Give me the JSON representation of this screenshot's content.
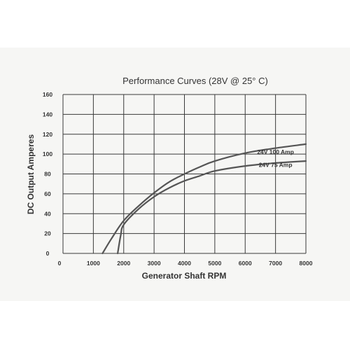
{
  "chart_data": {
    "type": "line",
    "title": "Performance Curves (28V @ 25° C)",
    "xlabel": "Generator Shaft RPM",
    "ylabel": "DC Output Amperes",
    "xlim": [
      0,
      8000
    ],
    "ylim": [
      0,
      160
    ],
    "xticks": [
      0,
      1000,
      2000,
      3000,
      4000,
      5000,
      6000,
      7000,
      8000
    ],
    "yticks": [
      0,
      20,
      40,
      60,
      80,
      100,
      120,
      140,
      160
    ],
    "xgrid": [
      0,
      1000,
      2000,
      3000,
      4000,
      5000,
      6000,
      7000,
      8000
    ],
    "grid": true,
    "series": [
      {
        "name": "24V 100 Amp",
        "x": [
          1300,
          1600,
          2000,
          2500,
          3000,
          3500,
          4000,
          4500,
          5000,
          6000,
          7000,
          8000
        ],
        "y": [
          0,
          15,
          33,
          48,
          61,
          72,
          80,
          87,
          93,
          101,
          106,
          110
        ]
      },
      {
        "name": "24V 75 Amp",
        "x": [
          1800,
          1900,
          2000,
          2500,
          3000,
          3500,
          4000,
          4500,
          5000,
          6000,
          7000,
          8000
        ],
        "y": [
          0,
          18,
          29,
          45,
          57,
          66,
          73,
          78,
          83,
          88,
          91,
          93
        ]
      }
    ]
  }
}
